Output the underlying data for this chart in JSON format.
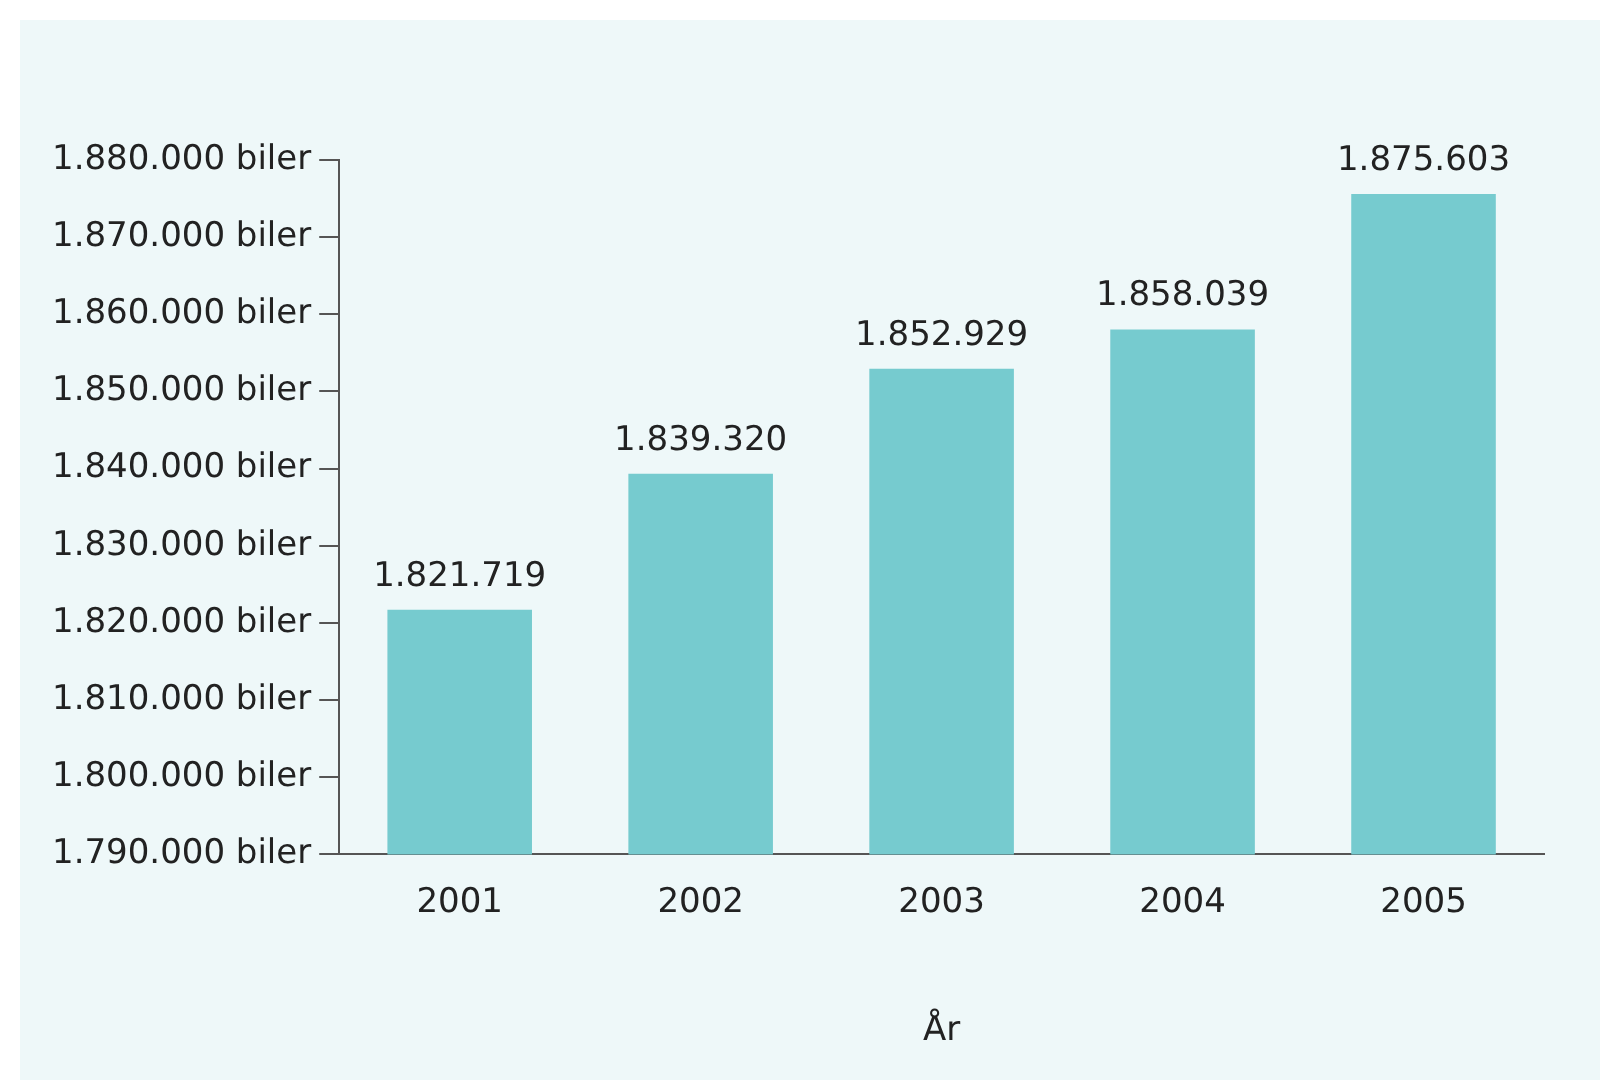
{
  "chart_data": {
    "type": "bar",
    "xlabel": "År",
    "categories": [
      "2001",
      "2002",
      "2003",
      "2004",
      "2005"
    ],
    "values": [
      1821719,
      1839320,
      1852929,
      1858039,
      1875603
    ],
    "value_labels": [
      "1.821.719",
      "1.839.320",
      "1.852.929",
      "1.858.039",
      "1.875.603"
    ],
    "color": "#76cbcf",
    "ylim": [
      1790000,
      1880000
    ],
    "yticks": [
      {
        "value": 1790000,
        "label": "1.790.000 biler"
      },
      {
        "value": 1800000,
        "label": "1.800.000 biler"
      },
      {
        "value": 1810000,
        "label": "1.810.000 biler"
      },
      {
        "value": 1820000,
        "label": "1.820.000 biler"
      },
      {
        "value": 1830000,
        "label": "1.830.000 biler"
      },
      {
        "value": 1840000,
        "label": "1.840.000 biler"
      },
      {
        "value": 1850000,
        "label": "1.850.000 biler"
      },
      {
        "value": 1860000,
        "label": "1.860.000 biler"
      },
      {
        "value": 1870000,
        "label": "1.870.000 biler"
      },
      {
        "value": 1880000,
        "label": "1.880.000 biler"
      }
    ],
    "grid": false,
    "legend": false
  }
}
